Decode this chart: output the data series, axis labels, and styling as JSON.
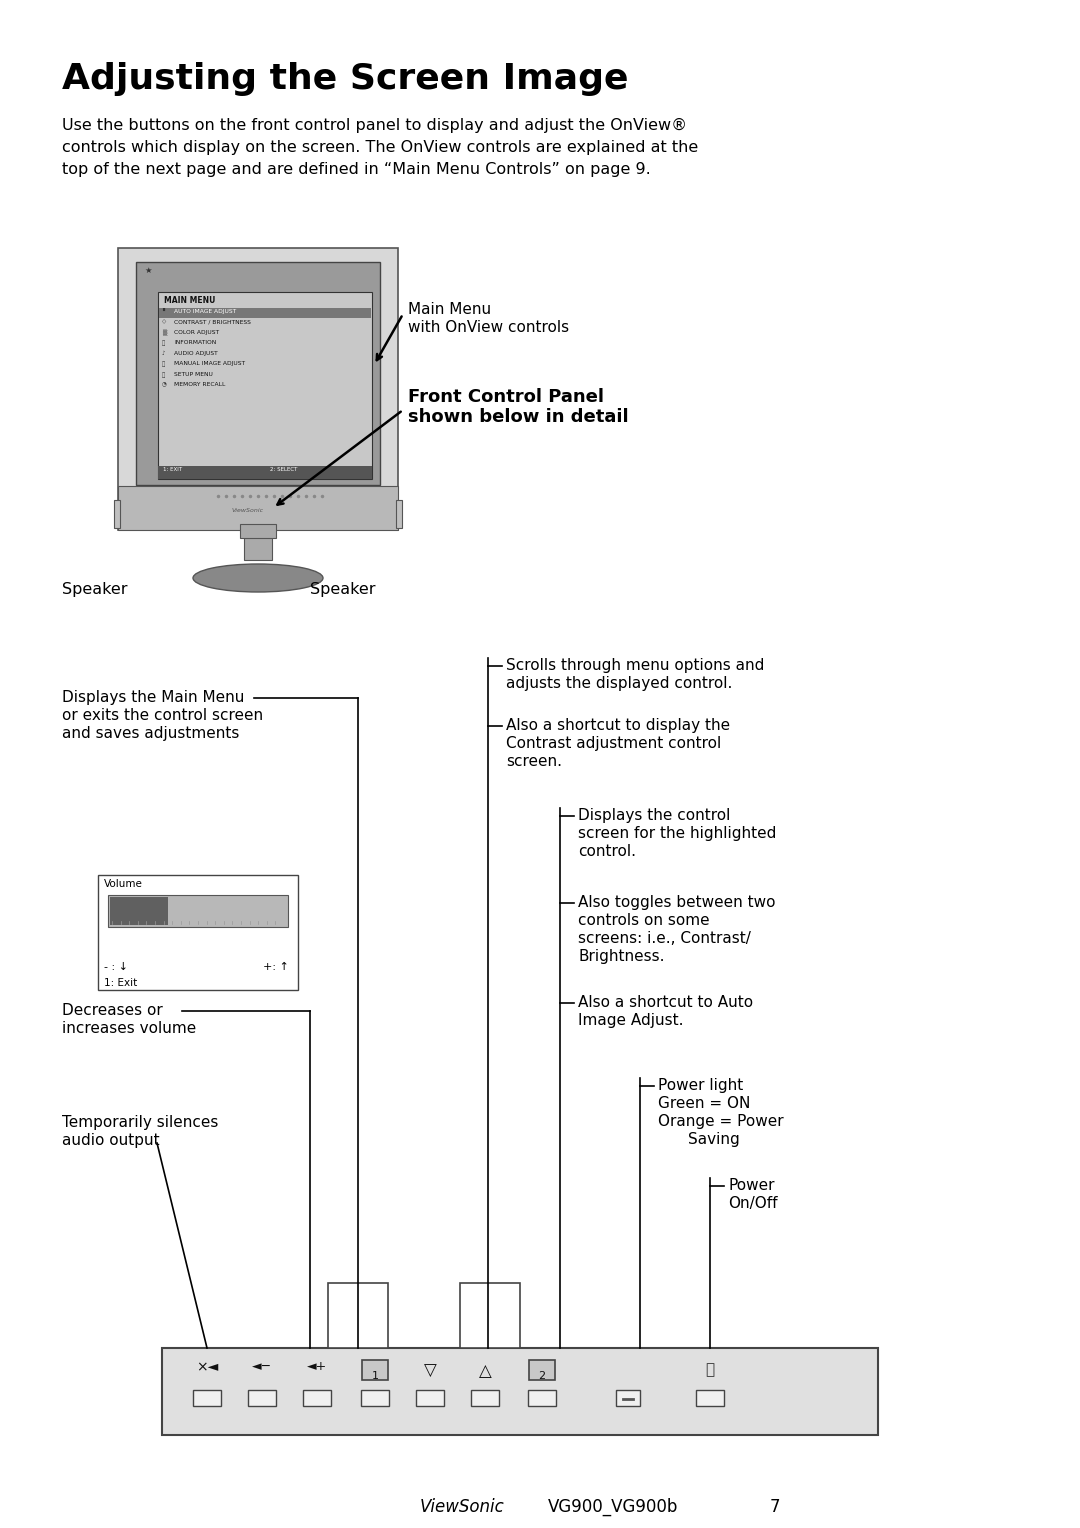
{
  "title": "Adjusting the Screen Image",
  "body_text_line1": "Use the buttons on the front control panel to display and adjust the OnView®",
  "body_text_line2": "controls which display on the screen. The OnView controls are explained at the",
  "body_text_line3": "top of the next page and are defined in “Main Menu Controls” on page 9.",
  "bg_color": "#ffffff",
  "text_color": "#000000",
  "footer_italic": "ViewSonic",
  "footer_model": "VG900_VG900b",
  "footer_page": "7",
  "menu_items": [
    "AUTO IMAGE ADJUST",
    "CONTRAST / BRIGHTNESS",
    "COLOR ADJUST",
    "INFORMATION",
    "AUDIO ADJUST",
    "MANUAL IMAGE ADJUST",
    "SETUP MENU",
    "MEMORY RECALL"
  ],
  "menu_icons": [
    "▘",
    "◇",
    "▒",
    "ⓘ",
    "♪",
    "⌖",
    "Ⓣ",
    "◔"
  ]
}
